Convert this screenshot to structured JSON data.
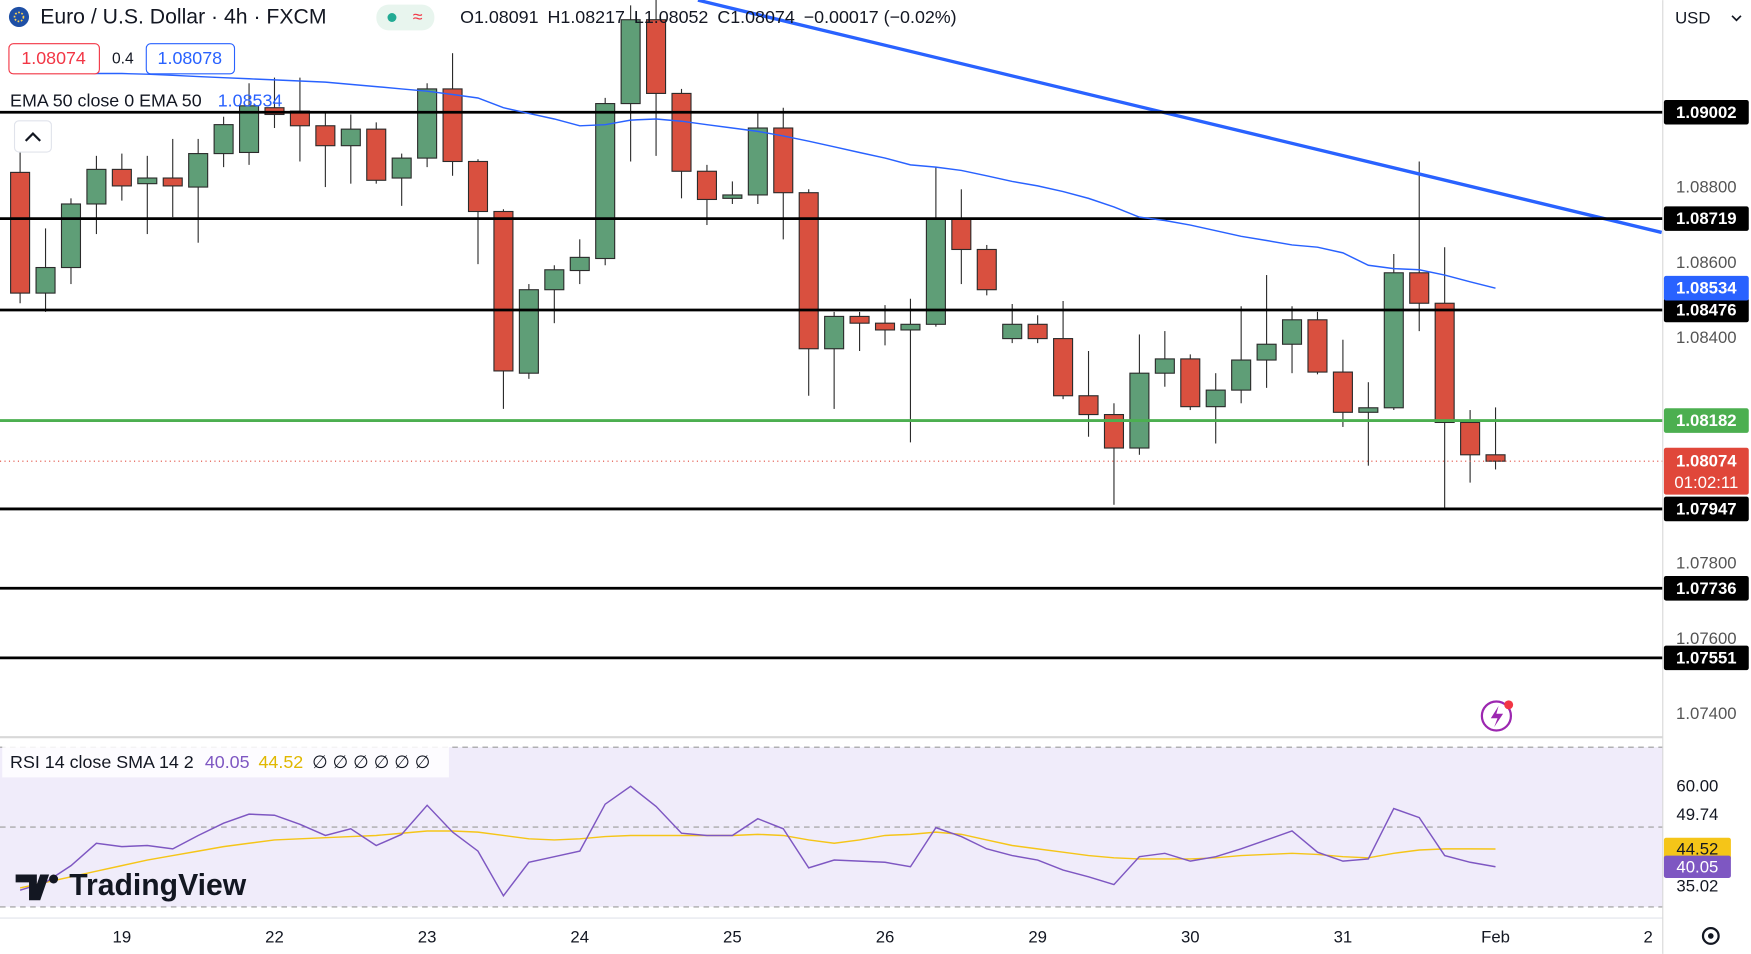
{
  "chart_data": {
    "type": "candlestick",
    "title": "Euro / U.S. Dollar · 4h · FXCM",
    "ohlc_labels": [
      "O",
      "H",
      "L",
      "C"
    ],
    "change": "−0.00017 (−0.02%)",
    "spread": 0.4,
    "ask": 1.08078,
    "ema_label": "EMA 50 close 0 EMA 50",
    "currency": "USD",
    "countdown": "01:02:11",
    "logo": "TradingView",
    "up_color": "#5f9e77",
    "down_color": "#d9503f",
    "border_color": "#2b2b2b",
    "categories": [
      null,
      null,
      null,
      null,
      "19",
      null,
      null,
      null,
      null,
      null,
      "22",
      null,
      null,
      null,
      null,
      null,
      "23",
      null,
      null,
      null,
      null,
      null,
      "24",
      null,
      null,
      null,
      null,
      null,
      "25",
      null,
      null,
      null,
      null,
      null,
      "26",
      null,
      null,
      null,
      null,
      null,
      "29",
      null,
      null,
      null,
      null,
      null,
      "30",
      null,
      null,
      null,
      null,
      null,
      "31",
      null,
      null,
      null,
      null,
      null,
      "Feb",
      null,
      null,
      null,
      null,
      null,
      "2"
    ],
    "open": [
      1.08842,
      1.08521,
      1.08589,
      1.08758,
      1.0885,
      1.08812,
      1.08827,
      1.08803,
      1.08892,
      1.08895,
      1.09014,
      1.09005,
      1.08966,
      1.08913,
      1.08957,
      1.08827,
      1.0888,
      1.09064,
      1.08871,
      1.08738,
      1.08308,
      1.0853,
      1.08581,
      1.08613,
      1.09025,
      1.09248,
      1.09052,
      1.08845,
      1.08773,
      1.08782,
      1.0896,
      1.08788,
      1.08373,
      1.08459,
      1.08441,
      1.08423,
      1.08438,
      1.08717,
      1.08637,
      1.084,
      1.08438,
      1.084,
      1.08248,
      1.08198,
      1.08109,
      1.08308,
      1.08346,
      1.08219,
      1.08263,
      1.08343,
      1.08385,
      1.0845,
      1.08311,
      1.08204,
      1.08216,
      1.08575,
      1.08494,
      1.08177,
      1.08091,
      null,
      null,
      null,
      null,
      null,
      null
    ],
    "high": [
      1.08916,
      1.08693,
      1.08773,
      1.08886,
      1.08892,
      1.08886,
      1.08931,
      1.08931,
      1.0899,
      1.09079,
      1.09094,
      1.09094,
      1.09005,
      1.08996,
      1.08975,
      1.08892,
      1.09079,
      1.09159,
      1.08877,
      1.08744,
      1.08545,
      1.08595,
      1.08664,
      1.0904,
      1.09286,
      1.09301,
      1.09064,
      1.08862,
      1.08818,
      1.09005,
      1.09014,
      1.08797,
      1.08471,
      1.08471,
      1.08489,
      1.08506,
      1.08856,
      1.08797,
      1.08649,
      1.08492,
      1.08462,
      1.085,
      1.08367,
      1.08228,
      1.08411,
      1.0842,
      1.08358,
      1.08308,
      1.08486,
      1.08569,
      1.08486,
      1.08471,
      1.08397,
      1.08284,
      1.08625,
      1.08871,
      1.08643,
      1.0821,
      1.08217,
      null,
      null,
      null,
      null,
      null,
      null
    ],
    "low": [
      1.08494,
      1.08471,
      1.08545,
      1.08678,
      1.08767,
      1.08678,
      1.08723,
      1.08655,
      1.08856,
      1.08862,
      1.0896,
      1.08871,
      1.08803,
      1.08812,
      1.08812,
      1.08753,
      1.08856,
      1.08833,
      1.08598,
      1.08213,
      1.08293,
      1.08441,
      1.08545,
      1.08595,
      1.08871,
      1.08886,
      1.08773,
      1.08702,
      1.08758,
      1.08758,
      1.08664,
      1.08248,
      1.08213,
      1.08367,
      1.08382,
      1.08124,
      1.08432,
      1.08545,
      1.08515,
      1.08388,
      1.08388,
      1.08239,
      1.08139,
      1.07958,
      1.08091,
      1.08272,
      1.0821,
      1.08121,
      1.08228,
      1.08269,
      1.08308,
      1.08305,
      1.08165,
      1.08062,
      1.0821,
      1.0842,
      1.07949,
      1.08017,
      1.08052,
      null,
      null,
      null,
      null,
      null,
      null
    ],
    "close": [
      1.08521,
      1.08589,
      1.08758,
      1.0885,
      1.08806,
      1.08827,
      1.08806,
      1.08892,
      1.08969,
      1.09019,
      1.08996,
      1.08966,
      1.08913,
      1.08957,
      1.08821,
      1.0888,
      1.09064,
      1.08871,
      1.08738,
      1.08314,
      1.0853,
      1.08583,
      1.08616,
      1.09025,
      1.09248,
      1.09052,
      1.08845,
      1.0877,
      1.08782,
      1.0896,
      1.08788,
      1.08373,
      1.08459,
      1.08441,
      1.08423,
      1.08438,
      1.08717,
      1.08637,
      1.0853,
      1.08438,
      1.084,
      1.08248,
      1.08198,
      1.08109,
      1.08308,
      1.08346,
      1.08219,
      1.08263,
      1.08343,
      1.08385,
      1.0845,
      1.08311,
      1.08204,
      1.08216,
      1.08575,
      1.08494,
      1.08177,
      1.08091,
      1.08074,
      null,
      null,
      null,
      null,
      null,
      null
    ],
    "ema": {
      "color": "#2962ff",
      "values": [
        1.09114,
        1.09111,
        1.09108,
        1.09105,
        1.09105,
        1.09103,
        1.091,
        1.09097,
        1.09094,
        1.09091,
        1.09088,
        1.09085,
        1.09082,
        1.09076,
        1.0907,
        1.09064,
        1.09058,
        1.09049,
        1.0904,
        1.09014,
        1.08999,
        1.08984,
        1.08966,
        1.08969,
        1.08981,
        1.08984,
        1.08978,
        1.08969,
        1.0896,
        1.08951,
        1.08939,
        1.08925,
        1.0891,
        1.08895,
        1.0888,
        1.08862,
        1.08856,
        1.08847,
        1.08833,
        1.08818,
        1.08806,
        1.08791,
        1.08773,
        1.0875,
        1.08723,
        1.08714,
        1.08702,
        1.08687,
        1.08672,
        1.08661,
        1.08649,
        1.08643,
        1.08628,
        1.08595,
        1.08586,
        1.08583,
        1.08569,
        1.08551,
        1.08534,
        null,
        null,
        null,
        null,
        null,
        null
      ]
    },
    "levels": [
      {
        "value": 1.09002,
        "color": "#000000"
      },
      {
        "value": 1.08719,
        "color": "#000000"
      },
      {
        "value": 1.08476,
        "color": "#000000"
      },
      {
        "value": 1.08182,
        "color": "#4caf50"
      },
      {
        "value": 1.07947,
        "color": "#000000"
      },
      {
        "value": 1.07736,
        "color": "#000000"
      },
      {
        "value": 1.07551,
        "color": "#000000"
      }
    ],
    "last_price_color": "#e0473a",
    "ylim": [
      1.0734,
      1.093
    ],
    "yticks": [
      {
        "value": 1.088,
        "label": "1.08800"
      },
      {
        "value": 1.086,
        "label": "1.08600"
      },
      {
        "value": 1.084,
        "label": "1.08400"
      },
      {
        "value": 1.078,
        "label": "1.07800"
      },
      {
        "value": 1.076,
        "label": "1.07600"
      },
      {
        "value": 1.074,
        "label": "1.07400"
      }
    ],
    "rsi": {
      "label": "RSI 14 close SMA 14 2",
      "na_labels": "∅ ∅ ∅ ∅ ∅ ∅",
      "color": "#7e57c2",
      "sma_color": "#f5c518",
      "band_fill": "#f0ecfa",
      "ylim": [
        27.2,
        72.5
      ],
      "yticks": [
        {
          "value": 60,
          "label": "60.00"
        },
        49.74,
        35.02
      ],
      "bands": [
        70,
        50,
        30
      ],
      "values": [
        34.2,
        36.15,
        40.35,
        45.94,
        45.1,
        45.38,
        44.55,
        47.9,
        50.98,
        53.22,
        52.94,
        50.7,
        47.9,
        49.58,
        45.38,
        48.18,
        55.45,
        48.74,
        43.99,
        32.8,
        41.19,
        42.59,
        43.99,
        55.73,
        60.21,
        55.17,
        48.46,
        47.9,
        47.9,
        52.1,
        49.58,
        39.79,
        41.75,
        41.47,
        41.19,
        40.07,
        49.86,
        47.62,
        44.55,
        42.87,
        41.75,
        39.23,
        37.55,
        35.59,
        42.59,
        43.43,
        41.47,
        42.59,
        44.55,
        46.78,
        49.02,
        43.71,
        41.47,
        42.03,
        54.62,
        52.38,
        42.87,
        41.19,
        40.05,
        null,
        null,
        null,
        null,
        null,
        null
      ],
      "sma": [
        34.76,
        36.15,
        37.55,
        38.95,
        40.35,
        41.75,
        42.87,
        43.99,
        45.1,
        45.94,
        46.78,
        47.06,
        47.34,
        47.62,
        47.9,
        48.46,
        49.02,
        49.02,
        48.74,
        47.9,
        47.06,
        46.78,
        47.06,
        47.62,
        47.9,
        47.9,
        47.9,
        47.9,
        47.9,
        48.18,
        47.9,
        46.78,
        45.94,
        46.78,
        47.9,
        48.18,
        48.74,
        48.18,
        46.78,
        45.38,
        44.55,
        43.71,
        42.87,
        42.31,
        42.03,
        42.03,
        42.03,
        42.31,
        42.87,
        43.15,
        43.43,
        43.15,
        42.59,
        42.31,
        43.43,
        44.27,
        44.55,
        44.55,
        44.52,
        null,
        null,
        null,
        null,
        null,
        null
      ]
    }
  }
}
